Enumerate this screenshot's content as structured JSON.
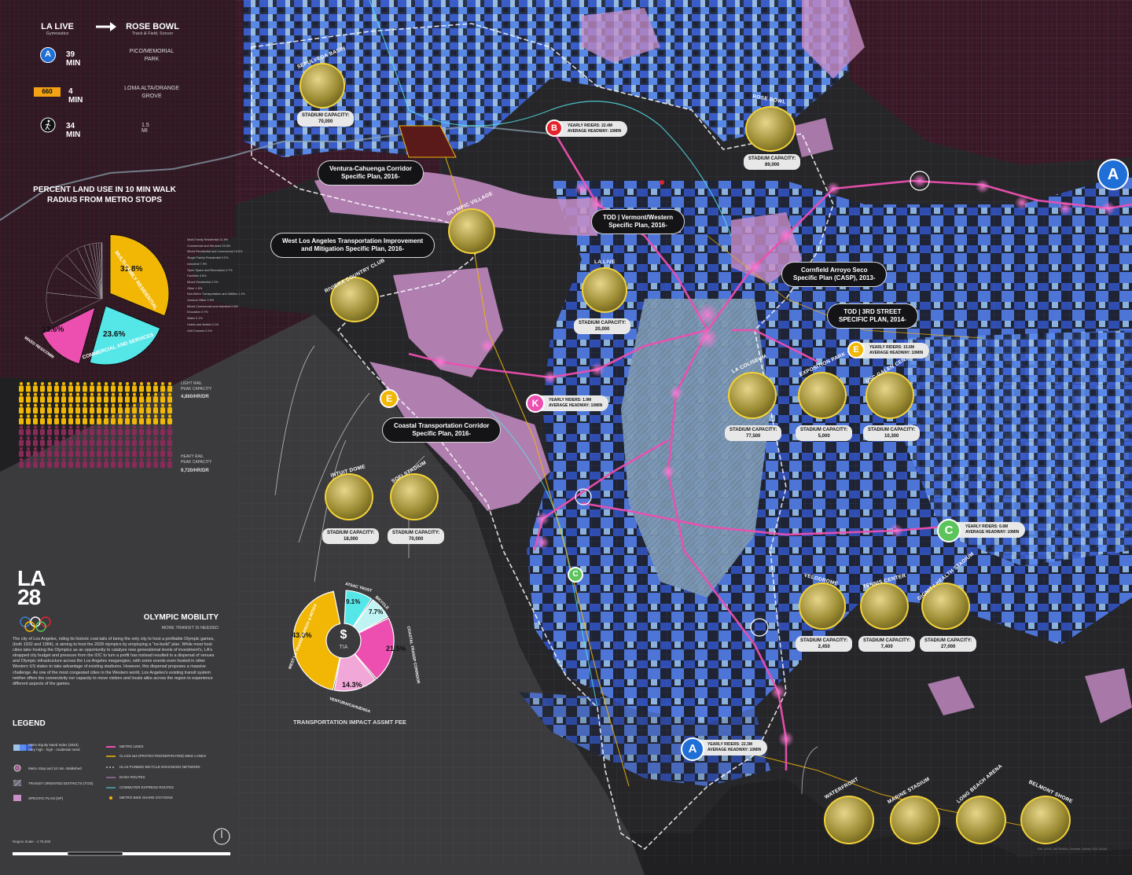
{
  "trip": {
    "origin": "LA LIVE",
    "origin_sub": "Gymnastics",
    "destination": "ROSE BOWL",
    "destination_sub": "Track & Field, Soccer",
    "options": [
      {
        "mode": "A",
        "time": "39 MIN",
        "note": "PICO/MEMORIAL PARK"
      },
      {
        "mode": "660",
        "time": "4 MIN",
        "note": "LOMA ALTA/ORANGE GROVE"
      },
      {
        "mode": "walk",
        "time": "34 MIN",
        "note": "1.5 MI"
      }
    ]
  },
  "land_use": {
    "title_line1": "PERCENT LAND USE IN 10 MIN WALK",
    "title_line2": "RADIUS FROM METRO STOPS",
    "slices": [
      {
        "label": "MULTI-FAMILY RESIDENTIAL",
        "value": "31.8%",
        "color": "#f2b705"
      },
      {
        "label": "COMMERCIAL AND SERVICES",
        "value": "23.6%",
        "color": "#55e6e8"
      },
      {
        "label": "MIXED RES/COMM",
        "value": "13.6%",
        "color": "#ec4fb0"
      }
    ],
    "breakdown": [
      "Multi-Family Residential 31.8%",
      "Commercial and Services 23.6%",
      "Mixed Residential and Commercial 13.6%",
      "Single Family Residential 9.2%",
      "Industrial 7.9%",
      "Open Space and Recreation 4.7%",
      "Facilities 3.6%",
      "Mixed Residential 2.2%",
      "Other 1.5%",
      "Non-Metro Transportation and Utilities 1.1%",
      "General Office 0.9%",
      "Mixed Commercial and Industrial 0.8%",
      "Education 0.7%",
      "Water 0.1%",
      "Hotels and Motels 0.1%",
      "Golf Courses 0.1%"
    ]
  },
  "capacity": {
    "light_rail_label": "LIGHT RAIL\nPEAK CAPACITY",
    "light_rail_value": "4,860/HR/DR",
    "heavy_rail_label": "HEAVY RAIL\nPEAK CAPACITY",
    "heavy_rail_value": "9,720/HR/DR",
    "light_rail_fraction": 0.5
  },
  "logo": {
    "text_top": "LA",
    "text_bottom": "28"
  },
  "mobility": {
    "title": "OLYMPIC MOBILITY",
    "subtitle": "MORE TRANSIT IS NEEDED",
    "body": "The city of Los Angeles, riding its historic coat tails of being the only city to host a profitable Olympic games, (both 1932 and 1984), is aiming to host the 2028 olympics by employing a \"no-build\" plan. While most host cities take hosting the Olympics as an opportunity to catalyze new generational levels of investment's, LA's strapped city budget and pressure from the IOC to turn a profit has instead resulted in a dispersal of venues and Olympic infrastructure across the Los Angeles megaregion, with some events even hosted in other Western US states to take advantage of existing stadiums. However, this dispersal proposes a massive challenge. As one of the most congested cities in the Western world, Los Angeles's existing transit system neither offers the connectivity nor capacity to move visitors and locals alike across the region to experience different aspects of the games."
  },
  "tia": {
    "center_symbol": "$",
    "center_label": "TIA",
    "title": "TRANSPORTATION IMPACT ASSMT FEE",
    "slices": [
      {
        "label": "WEST LA TRANSP IMPROV & MITIGA",
        "value": "43.9%",
        "color": "#f2b705"
      },
      {
        "label": "ATSAC TRUST",
        "value": "9.1%",
        "color": "#55e6e8"
      },
      {
        "label": "BICYCLE",
        "value": "7.7%",
        "color": "#bff3f4"
      },
      {
        "label": "COASTAL TRANSP CORRIDOR",
        "value": "21.5%",
        "color": "#ec4fb0"
      },
      {
        "label": "VENTURA/CAHUENGA",
        "value": "14.3%",
        "color": "#f1a8d8"
      }
    ]
  },
  "legend": {
    "title": "LEGEND",
    "left": [
      "Metro Equity Need Index (2022)\nVery high - high - moderate need",
      "Metro Stop and 10 min. Walkshed",
      "TRANSIT ORIENTED DISTRICTS (TOD)",
      "SPECIFIC PLAN (SP)"
    ],
    "right": [
      "METRO LINES",
      "CLASS I&4 (PROTECTED/SEPARATED) BIKE LANES",
      "HLAZ FUNDED BICYCLE ENHANCED NETWORK",
      "DASH ROUTES",
      "COMMUTER EXPRESS ROUTES",
      "METRO BIKE SHARE STATIONS"
    ],
    "scale": "Region Scale - 1:75,000"
  },
  "plans": [
    {
      "line1": "Ventura-Cahuenga Corridor",
      "line2": "Specific Plan, 2016-"
    },
    {
      "line1": "TOD | Vermont/Western",
      "line2": "Specific Plan, 2016-"
    },
    {
      "line1": "West Los Angeles Transportation Improvement",
      "line2": "and Mitigation Specific Plan, 2016-"
    },
    {
      "line1": "Cornfield Arroyo Seco",
      "line2": "Specific Plan (CASP), 2013-"
    },
    {
      "line1": "TOD | 3RD STREET",
      "line2": "SPECIFIC PLAN, 2014-"
    },
    {
      "line1": "Coastal Transportation Corridor",
      "line2": "Specific Plan, 2016-"
    }
  ],
  "venues": [
    {
      "name": "SEPULVEDA BASIN",
      "capacity": "STADIUM CAPACITY:\n70,000"
    },
    {
      "name": "ROSE BOWL",
      "capacity": "STADIUM CAPACITY:\n89,000"
    },
    {
      "name": "OLYMPIC VILLAGE",
      "capacity": ""
    },
    {
      "name": "LA LIVE",
      "capacity": "STADIUM CAPACITY:\n20,000"
    },
    {
      "name": "RIVIERA COUNTRY CLUB",
      "capacity": ""
    },
    {
      "name": "LA COLISEUM",
      "capacity": "STADIUM CAPACITY:\n77,500"
    },
    {
      "name": "EXPOSITION PARK",
      "capacity": "STADIUM CAPACITY:\n5,000"
    },
    {
      "name": "USC GALEN CENTER",
      "capacity": "STADIUM CAPACITY:\n10,300"
    },
    {
      "name": "INTUIT DOME",
      "capacity": "STADIUM CAPACITY:\n18,000"
    },
    {
      "name": "SOFI STADIUM",
      "capacity": "STADIUM CAPACITY:\n70,000"
    },
    {
      "name": "VELODROME",
      "capacity": "STADIUM CAPACITY:\n2,450"
    },
    {
      "name": "TENNIS CENTER",
      "capacity": "STADIUM CAPACITY:\n7,400"
    },
    {
      "name": "DIGNITY HEALTH STADIUM",
      "capacity": "STADIUM CAPACITY:\n27,000"
    },
    {
      "name": "WATERFRONT",
      "capacity": ""
    },
    {
      "name": "MARINE STADIUM",
      "capacity": ""
    },
    {
      "name": "LONG BEACH ARENA",
      "capacity": ""
    },
    {
      "name": "BELMONT SHORE",
      "capacity": ""
    }
  ],
  "lines": [
    {
      "letter": "A",
      "color": "#1f6fd6"
    },
    {
      "letter": "B",
      "color": "#e3222b"
    },
    {
      "letter": "E",
      "color": "#f2b705"
    },
    {
      "letter": "K",
      "color": "#ec4fb0"
    },
    {
      "letter": "C",
      "color": "#5cc45a"
    }
  ],
  "ridership": [
    {
      "line": "B",
      "riders": "YEARLY RIDERS: 22.4M",
      "headway": "AVERAGE HEADWAY: 10MIN"
    },
    {
      "line": "E",
      "riders": "YEARLY RIDERS: 15.6M",
      "headway": "AVERAGE HEADWAY: 10MIN"
    },
    {
      "line": "K",
      "riders": "YEARLY RIDERS: 1.9M",
      "headway": "AVERAGE HEADWAY: 10MIN"
    },
    {
      "line": "C",
      "riders": "YEARLY RIDERS: 6.6M",
      "headway": "AVERAGE HEADWAY: 10MIN"
    },
    {
      "line": "A",
      "riders": "YEARLY RIDERS: 22.3M",
      "headway": "AVERAGE HEADWAY: 10MIN"
    }
  ],
  "credit": "Esri, USGS, METI/NASA, Geodata, Garmin, FAO, NOAA",
  "palette": {
    "need_very_high": "#3a5fd0",
    "need_high": "#5b8df0",
    "need_moderate": "#9ec3e8",
    "specific_plan": "#c98fc8",
    "metro_line": "#ec4fb0",
    "bike": "#f2b705",
    "dash": "#55e6e8"
  }
}
